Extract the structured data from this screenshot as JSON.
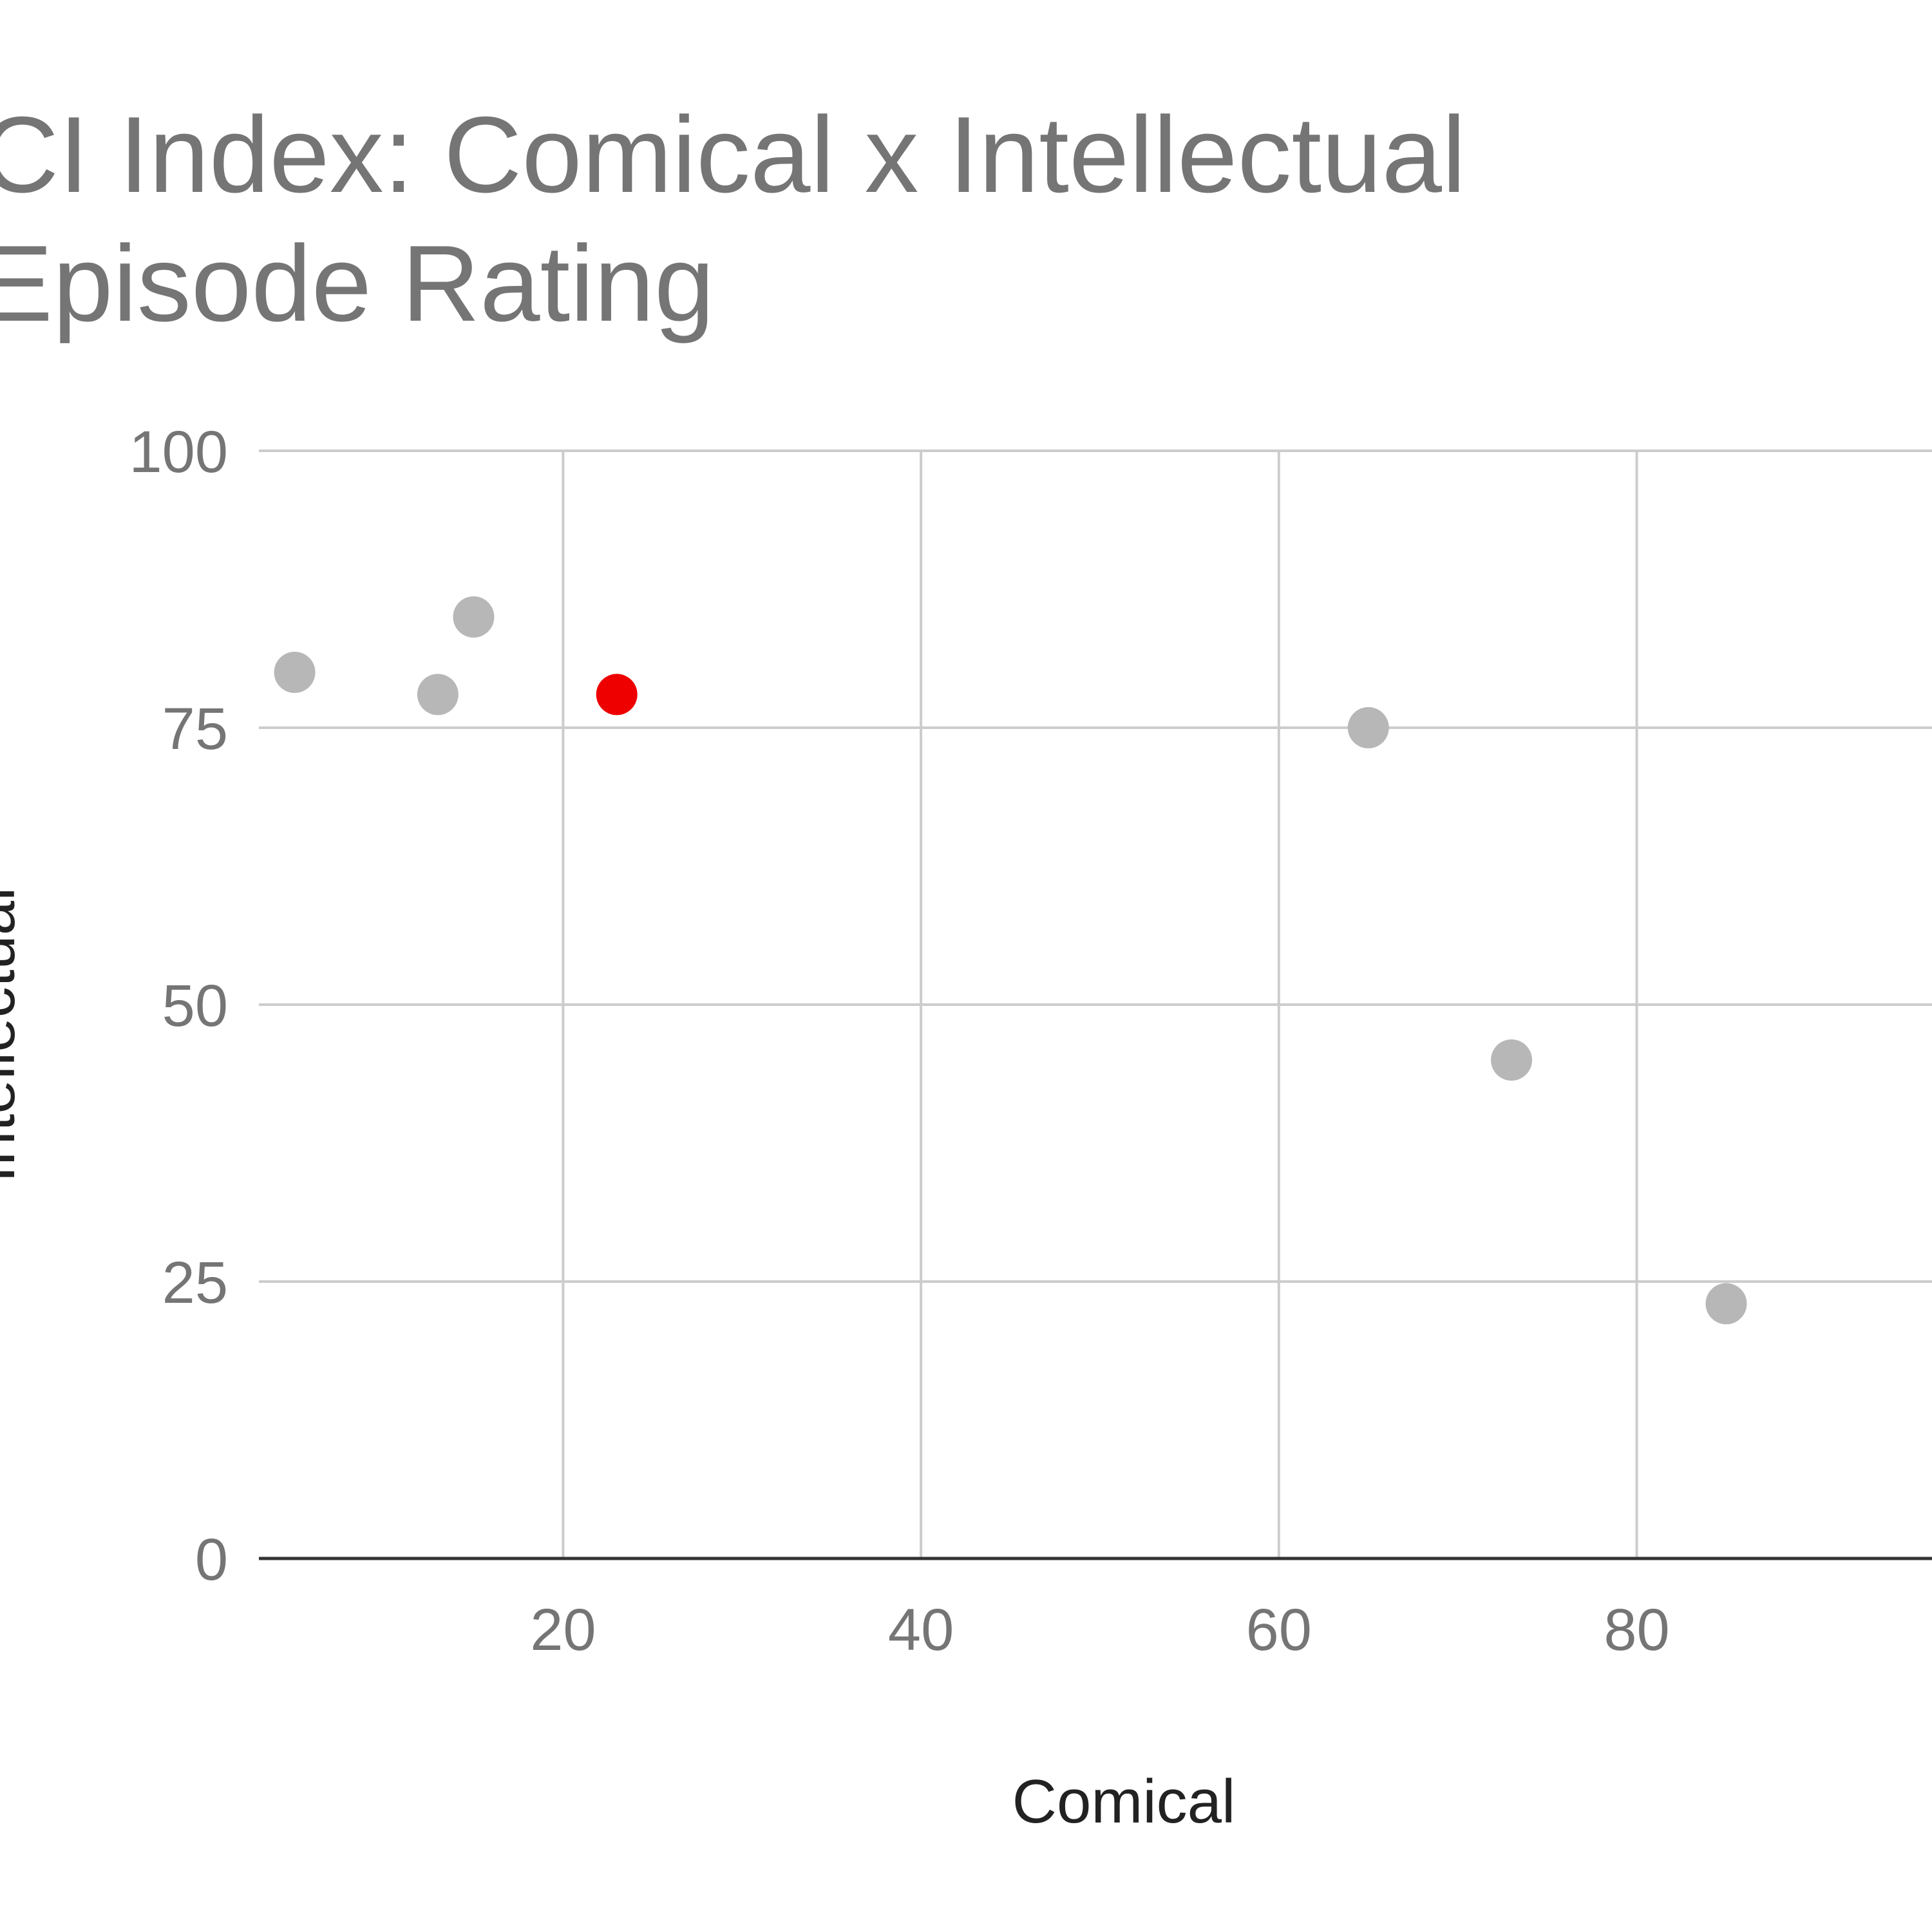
{
  "chart_data": {
    "type": "scatter",
    "title": "CI Index: Comical x Intellectual Episode Rating",
    "x_label": "Comical",
    "y_label": "Intellectual",
    "series": [
      {
        "x": [
          5,
          13,
          15,
          23,
          65,
          73,
          85
        ],
        "values": [
          80,
          78,
          85,
          78,
          75,
          45,
          23
        ],
        "colors": [
          "#b7b7b7",
          "#b7b7b7",
          "#b7b7b7",
          "#ee0000",
          "#b7b7b7",
          "#b7b7b7",
          "#b7b7b7"
        ]
      }
    ],
    "xlim": [
      3,
      96.5
    ],
    "xticks": [
      20,
      40,
      60,
      80
    ],
    "ylim": [
      0,
      100
    ],
    "yticks": [
      0,
      25,
      50,
      75,
      100
    ],
    "grid": true
  }
}
